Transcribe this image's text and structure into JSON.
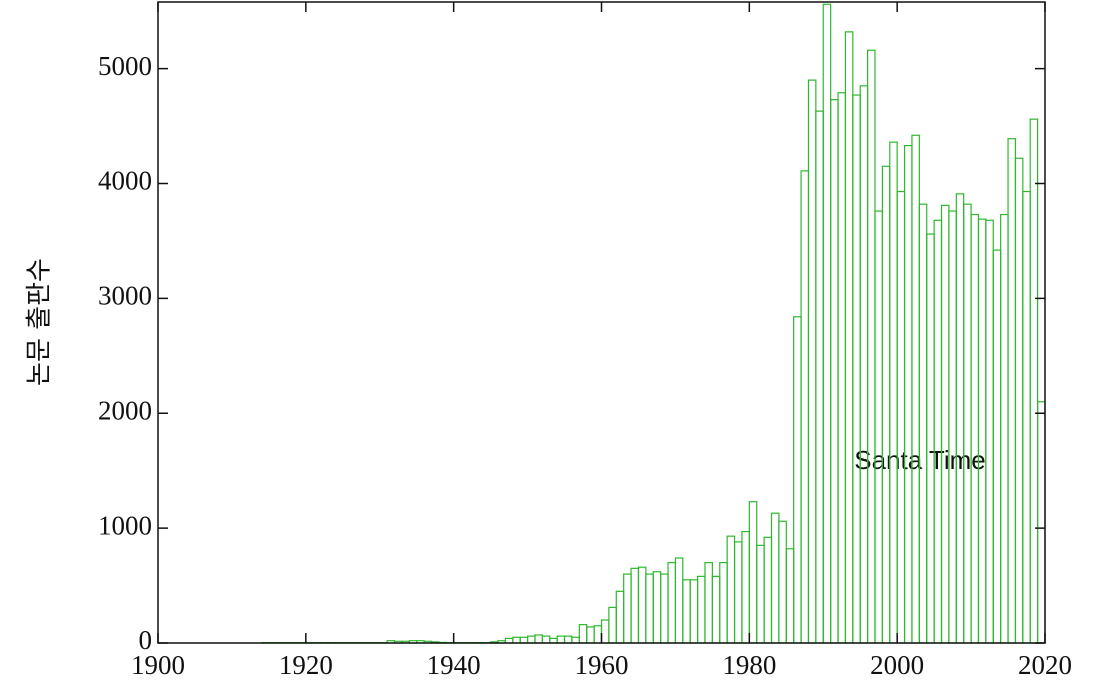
{
  "chart_data": {
    "type": "histogram",
    "y_label": "논문 출판수",
    "annotation": "Santa Time",
    "color": "#2eb82e",
    "bins": [
      1900,
      1901,
      1902,
      1903,
      1904,
      1905,
      1906,
      1907,
      1908,
      1909,
      1910,
      1911,
      1912,
      1913,
      1914,
      1915,
      1916,
      1917,
      1918,
      1919,
      1920,
      1921,
      1922,
      1923,
      1924,
      1925,
      1926,
      1927,
      1928,
      1929,
      1930,
      1931,
      1932,
      1933,
      1934,
      1935,
      1936,
      1937,
      1938,
      1939,
      1940,
      1941,
      1942,
      1943,
      1944,
      1945,
      1946,
      1947,
      1948,
      1949,
      1950,
      1951,
      1952,
      1953,
      1954,
      1955,
      1956,
      1957,
      1958,
      1959,
      1960,
      1961,
      1962,
      1963,
      1964,
      1965,
      1966,
      1967,
      1968,
      1969,
      1970,
      1971,
      1972,
      1973,
      1974,
      1975,
      1976,
      1977,
      1978,
      1979,
      1980,
      1981,
      1982,
      1983,
      1984,
      1985,
      1986,
      1987,
      1988,
      1989,
      1990,
      1991,
      1992,
      1993,
      1994,
      1995,
      1996,
      1997,
      1998,
      1999,
      2000,
      2001,
      2002,
      2003,
      2004,
      2005,
      2006,
      2007,
      2008,
      2009,
      2010,
      2011,
      2012,
      2013,
      2014,
      2015,
      2016,
      2017,
      2018,
      2019,
      2020
    ],
    "values": [
      0,
      0,
      0,
      0,
      0,
      0,
      0,
      0,
      0,
      0,
      0,
      0,
      0,
      0,
      3,
      3,
      3,
      3,
      3,
      3,
      3,
      3,
      3,
      3,
      3,
      3,
      3,
      3,
      3,
      3,
      3,
      20,
      15,
      15,
      20,
      20,
      15,
      10,
      5,
      3,
      3,
      3,
      3,
      3,
      3,
      10,
      20,
      40,
      50,
      50,
      60,
      70,
      60,
      40,
      60,
      60,
      50,
      160,
      140,
      150,
      200,
      310,
      450,
      600,
      650,
      660,
      600,
      620,
      600,
      700,
      740,
      550,
      550,
      580,
      700,
      580,
      700,
      930,
      880,
      970,
      1230,
      850,
      920,
      1130,
      1060,
      820,
      2840,
      4110,
      4900,
      4630,
      5560,
      4730,
      4790,
      5320,
      4770,
      4850,
      5160,
      3760,
      4150,
      4360,
      3930,
      4330,
      4420,
      3820,
      3560,
      3680,
      3810,
      3760,
      3910,
      3820,
      3730,
      3690,
      3680,
      3420,
      3730,
      4390,
      4220,
      3930,
      4560,
      2100
    ],
    "xlim": [
      1900,
      2020
    ],
    "ylim": [
      0,
      5580
    ],
    "xticks": [
      1900,
      1920,
      1940,
      1960,
      1980,
      2000,
      2020
    ],
    "yticks": [
      0,
      1000,
      2000,
      3000,
      4000,
      5000
    ]
  }
}
